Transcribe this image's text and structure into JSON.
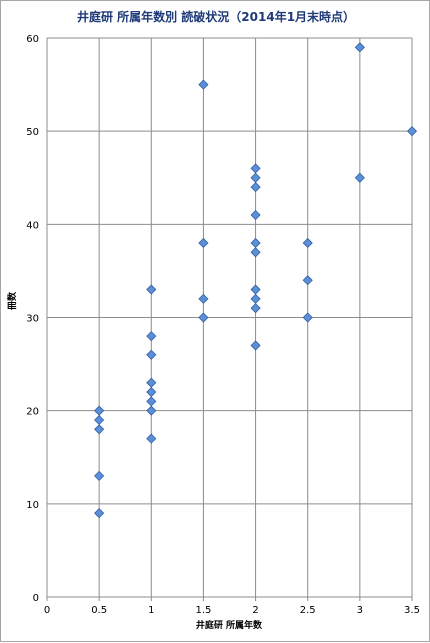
{
  "chart_data": {
    "type": "scatter",
    "title": "井庭研 所属年数別 読破状況（2014年1月末時点）",
    "xlabel": "井庭研 所属年数",
    "ylabel": "冊数",
    "xlim": [
      0,
      3.5
    ],
    "ylim": [
      0,
      60
    ],
    "x_ticks": [
      "0",
      "0.5",
      "1",
      "1.5",
      "2",
      "2.5",
      "3",
      "3.5"
    ],
    "y_ticks": [
      "0",
      "10",
      "20",
      "30",
      "40",
      "50",
      "60"
    ],
    "grid": {
      "x": true,
      "y": true
    },
    "marker": "diamond",
    "colors": {
      "marker_fill": "#5b8fd6",
      "marker_stroke": "#2f5ea8",
      "grid": "#8c8c8c",
      "title": "#1f3a78"
    },
    "points": [
      {
        "x": 0.5,
        "y": 20
      },
      {
        "x": 0.5,
        "y": 19
      },
      {
        "x": 0.5,
        "y": 18
      },
      {
        "x": 0.5,
        "y": 13
      },
      {
        "x": 0.5,
        "y": 9
      },
      {
        "x": 1,
        "y": 33
      },
      {
        "x": 1,
        "y": 28
      },
      {
        "x": 1,
        "y": 26
      },
      {
        "x": 1,
        "y": 23
      },
      {
        "x": 1,
        "y": 22
      },
      {
        "x": 1,
        "y": 21
      },
      {
        "x": 1,
        "y": 20
      },
      {
        "x": 1,
        "y": 17
      },
      {
        "x": 1.5,
        "y": 55
      },
      {
        "x": 1.5,
        "y": 38
      },
      {
        "x": 1.5,
        "y": 32
      },
      {
        "x": 1.5,
        "y": 30
      },
      {
        "x": 2,
        "y": 46
      },
      {
        "x": 2,
        "y": 45
      },
      {
        "x": 2,
        "y": 44
      },
      {
        "x": 2,
        "y": 41
      },
      {
        "x": 2,
        "y": 38
      },
      {
        "x": 2,
        "y": 37
      },
      {
        "x": 2,
        "y": 33
      },
      {
        "x": 2,
        "y": 32
      },
      {
        "x": 2,
        "y": 31
      },
      {
        "x": 2,
        "y": 27
      },
      {
        "x": 2.5,
        "y": 38
      },
      {
        "x": 2.5,
        "y": 34
      },
      {
        "x": 2.5,
        "y": 30
      },
      {
        "x": 3,
        "y": 59
      },
      {
        "x": 3,
        "y": 45
      },
      {
        "x": 3.5,
        "y": 50
      }
    ]
  }
}
